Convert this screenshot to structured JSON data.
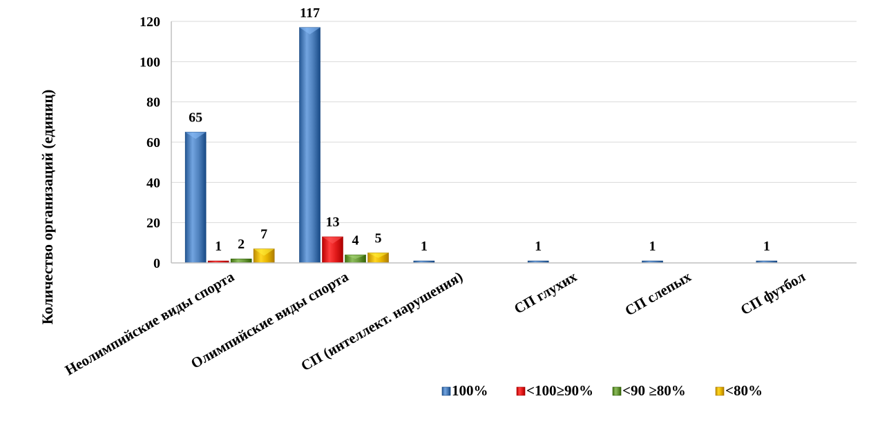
{
  "chart_data": {
    "type": "bar",
    "categories": [
      "Неолимпийские виды спорта",
      "Олимпийские виды спорта",
      "СП (интеллект. нарушения)",
      "СП глухих",
      "СП слепых",
      "СП футбол"
    ],
    "series": [
      {
        "name": "100%",
        "values": [
          65,
          117,
          1,
          1,
          1,
          1
        ],
        "color": "#4f81bd"
      },
      {
        "name": "<100≥90%",
        "values": [
          1,
          13,
          null,
          null,
          null,
          null
        ],
        "color": "#e31b1b"
      },
      {
        "name": "<90 ≥80%",
        "values": [
          2,
          4,
          null,
          null,
          null,
          null
        ],
        "color": "#6a9a3a"
      },
      {
        "name": "<80%",
        "values": [
          7,
          5,
          null,
          null,
          null,
          null
        ],
        "color": "#e6b400"
      }
    ],
    "data_labels": [
      [
        "65",
        "1",
        "2",
        "7"
      ],
      [
        "117",
        "13",
        "4",
        "5"
      ],
      [
        "1",
        "",
        "",
        ""
      ],
      [
        "1",
        "",
        "",
        ""
      ],
      [
        "1",
        "",
        "",
        ""
      ],
      [
        "1",
        "",
        "",
        ""
      ]
    ],
    "title": "",
    "xlabel": "",
    "ylabel": "Количество организаций (единиц)",
    "ylim": [
      0,
      120
    ],
    "yticks": [
      0,
      20,
      40,
      60,
      80,
      100,
      120
    ],
    "grid": true,
    "legend": "bottom-right"
  }
}
